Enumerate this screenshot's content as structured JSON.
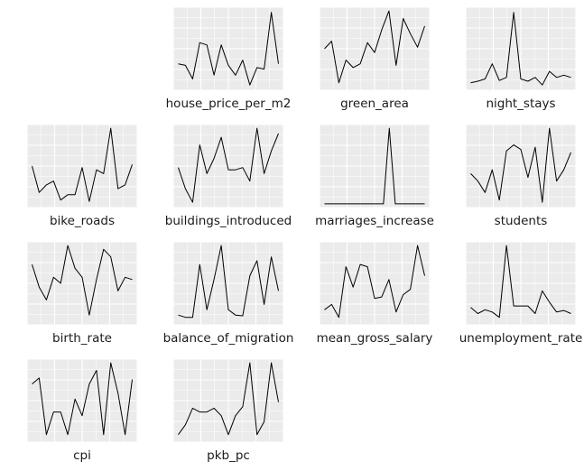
{
  "chart_data": {
    "type": "line",
    "layout": "small-multiples",
    "grid": true,
    "ylim": [
      0,
      1
    ],
    "panels": [
      {
        "label": "house_price_per_m2",
        "values": [
          0.3,
          0.28,
          0.1,
          0.58,
          0.55,
          0.15,
          0.55,
          0.28,
          0.15,
          0.35,
          0.02,
          0.25,
          0.23,
          0.98,
          0.3
        ]
      },
      {
        "label": "green_area",
        "values": [
          0.5,
          0.6,
          0.05,
          0.35,
          0.25,
          0.3,
          0.58,
          0.45,
          0.75,
          1.0,
          0.28,
          0.9,
          0.7,
          0.52,
          0.8
        ]
      },
      {
        "label": "night_stays",
        "values": [
          0.05,
          0.07,
          0.1,
          0.3,
          0.08,
          0.12,
          0.98,
          0.1,
          0.07,
          0.12,
          0.02,
          0.2,
          0.12,
          0.15,
          0.12
        ]
      },
      {
        "label": "bike_roads",
        "values": [
          0.5,
          0.15,
          0.25,
          0.3,
          0.05,
          0.12,
          0.12,
          0.48,
          0.03,
          0.45,
          0.4,
          1.0,
          0.2,
          0.25,
          0.52
        ]
      },
      {
        "label": "buildings_introduced",
        "values": [
          0.48,
          0.2,
          0.02,
          0.78,
          0.4,
          0.6,
          0.88,
          0.45,
          0.45,
          0.48,
          0.3,
          1.0,
          0.4,
          0.7,
          0.93
        ]
      },
      {
        "label": "marriages_increase",
        "values": [
          0.0,
          0.0,
          0.0,
          0.0,
          0.0,
          0.0,
          0.0,
          0.0,
          0.0,
          0.0,
          0.0,
          1.0,
          0.0,
          0.0,
          0.0,
          0.0,
          0.0,
          0.0
        ]
      },
      {
        "label": "students",
        "values": [
          0.4,
          0.3,
          0.15,
          0.45,
          0.05,
          0.7,
          0.78,
          0.72,
          0.35,
          0.75,
          0.02,
          1.0,
          0.3,
          0.45,
          0.68
        ]
      },
      {
        "label": "birth_rate",
        "values": [
          0.75,
          0.45,
          0.28,
          0.58,
          0.5,
          1.0,
          0.7,
          0.58,
          0.08,
          0.55,
          0.95,
          0.85,
          0.4,
          0.58,
          0.55
        ]
      },
      {
        "label": "balance_of_migration",
        "values": [
          0.08,
          0.05,
          0.05,
          0.75,
          0.15,
          0.55,
          1.0,
          0.15,
          0.08,
          0.07,
          0.6,
          0.8,
          0.22,
          0.85,
          0.4
        ]
      },
      {
        "label": "mean_gross_salary",
        "values": [
          0.15,
          0.22,
          0.05,
          0.72,
          0.45,
          0.75,
          0.72,
          0.3,
          0.32,
          0.55,
          0.12,
          0.35,
          0.42,
          1.0,
          0.6
        ]
      },
      {
        "label": "unemployment_rate",
        "values": [
          0.18,
          0.1,
          0.15,
          0.12,
          0.05,
          1.0,
          0.2,
          0.2,
          0.2,
          0.1,
          0.4,
          0.25,
          0.12,
          0.14,
          0.1
        ]
      },
      {
        "label": "cpi",
        "values": [
          0.72,
          0.8,
          0.05,
          0.35,
          0.35,
          0.05,
          0.52,
          0.3,
          0.72,
          0.9,
          0.05,
          1.0,
          0.6,
          0.05,
          0.78
        ]
      },
      {
        "label": "pkb_pc",
        "values": [
          0.05,
          0.18,
          0.4,
          0.35,
          0.35,
          0.4,
          0.3,
          0.05,
          0.3,
          0.42,
          1.0,
          0.05,
          0.22,
          1.0,
          0.48
        ]
      }
    ]
  }
}
